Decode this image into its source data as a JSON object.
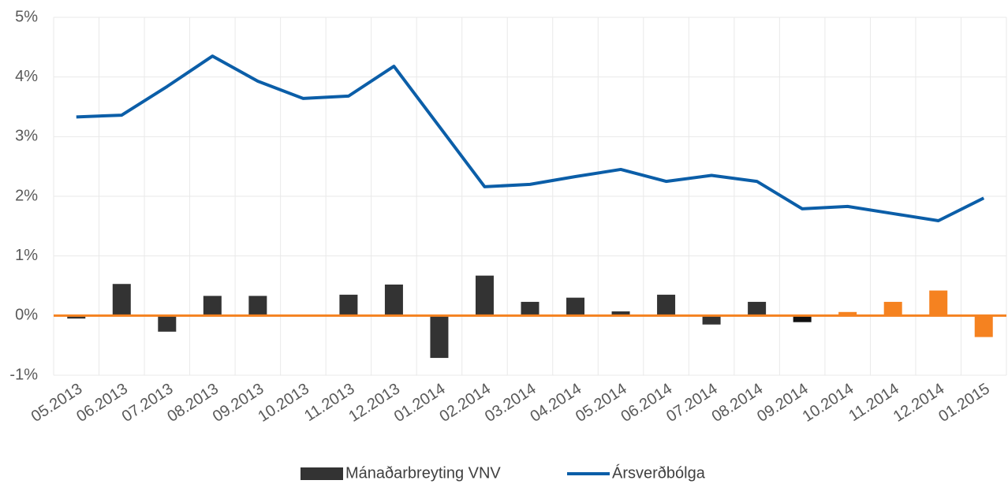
{
  "chart_data": {
    "type": "combo",
    "categories": [
      "05.2013",
      "06.2013",
      "07.2013",
      "08.2013",
      "09.2013",
      "10.2013",
      "11.2013",
      "12.2013",
      "01.2014",
      "02.2014",
      "03.2014",
      "04.2014",
      "05.2014",
      "06.2014",
      "07.2014",
      "08.2014",
      "09.2014",
      "10.2014",
      "11.2014",
      "12.2014",
      "01.2015"
    ],
    "series": [
      {
        "name": "Mánaðarbreyting VNV",
        "type": "bar",
        "color": "#333333",
        "colors": [
          "#333333",
          "#333333",
          "#333333",
          "#333333",
          "#333333",
          "#333333",
          "#333333",
          "#333333",
          "#333333",
          "#333333",
          "#333333",
          "#333333",
          "#333333",
          "#333333",
          "#333333",
          "#333333",
          "#111111",
          "#f58220",
          "#f58220",
          "#f58220",
          "#f58220"
        ],
        "values": [
          -0.05,
          0.53,
          -0.27,
          0.33,
          0.33,
          0,
          0.35,
          0.52,
          -0.71,
          0.67,
          0.23,
          0.3,
          0.07,
          0.35,
          -0.15,
          0.23,
          -0.11,
          0.06,
          0.23,
          0.42,
          -0.36
        ]
      },
      {
        "name": "Ársverðbólga",
        "type": "line",
        "color": "#0b5ea8",
        "values": [
          3.33,
          3.36,
          3.84,
          4.35,
          3.93,
          3.64,
          3.68,
          4.18,
          3.17,
          2.16,
          2.2,
          2.33,
          2.45,
          2.25,
          2.35,
          2.25,
          1.79,
          1.83,
          1.71,
          1.59,
          1.97
        ]
      }
    ],
    "ylim": [
      -1,
      5
    ],
    "yticks": [
      {
        "value": -1,
        "label": "-1%"
      },
      {
        "value": 0,
        "label": "0%"
      },
      {
        "value": 1,
        "label": "1%"
      },
      {
        "value": 2,
        "label": "2%"
      },
      {
        "value": 3,
        "label": "3%"
      },
      {
        "value": 4,
        "label": "4%"
      },
      {
        "value": 5,
        "label": "5%"
      }
    ],
    "zero_line_color": "#f58220",
    "grid": true,
    "legend": "bottom"
  }
}
